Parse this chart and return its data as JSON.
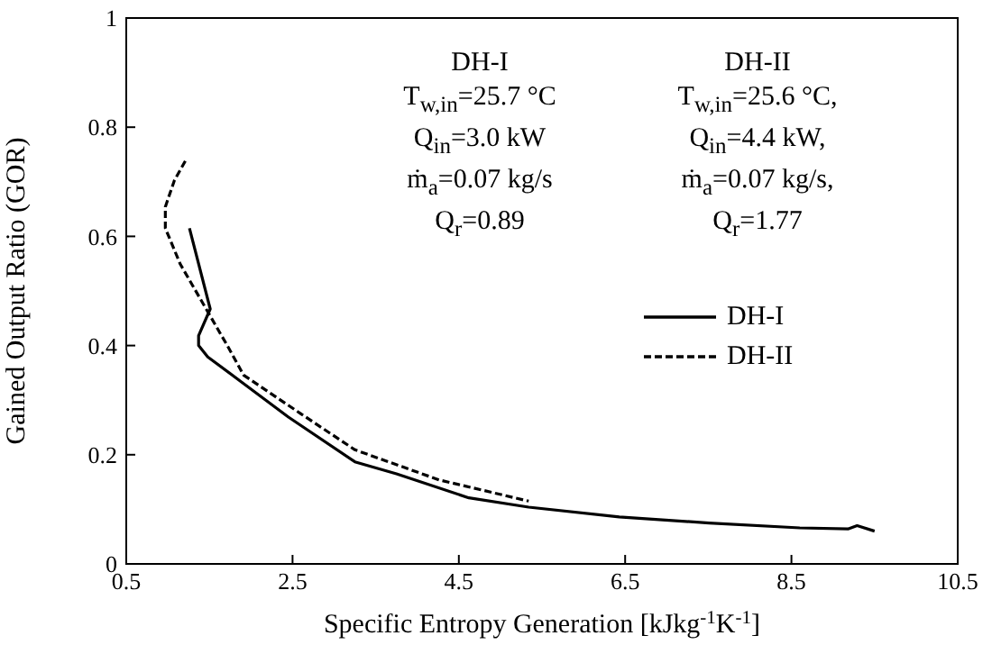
{
  "chart_data": {
    "type": "line",
    "xlabel": "Specific Entropy Generation [kJkg$^{-1}$K$^{-1}$]",
    "ylabel": "Gained Output Ratio (GOR)",
    "xlim": [
      0.5,
      10.5
    ],
    "xticks": [
      0.5,
      2.5,
      4.5,
      6.5,
      8.5,
      10.5
    ],
    "ylim": [
      0,
      1
    ],
    "yticks": [
      0,
      0.2,
      0.4,
      0.6,
      0.8,
      1
    ],
    "legend": "right",
    "marker": "none",
    "series": [
      {
        "name": "DH-I",
        "color": "#000000",
        "line_style": "solid",
        "x": [
          1.26,
          1.51,
          1.37,
          1.37,
          1.48,
          1.87,
          2.45,
          3.25,
          3.75,
          4.62,
          5.34,
          6.43,
          7.51,
          8.6,
          9.18,
          9.29,
          9.5
        ],
        "values": [
          0.615,
          0.467,
          0.418,
          0.4,
          0.379,
          0.335,
          0.269,
          0.187,
          0.165,
          0.121,
          0.104,
          0.086,
          0.075,
          0.066,
          0.064,
          0.07,
          0.06
        ]
      },
      {
        "name": "DH-II",
        "color": "#000000",
        "line_style": "dashed",
        "x": [
          1.21,
          1.08,
          0.97,
          0.97,
          1.15,
          1.48,
          1.73,
          1.91,
          2.6,
          3.25,
          4.26,
          5.34
        ],
        "values": [
          0.738,
          0.703,
          0.654,
          0.615,
          0.549,
          0.462,
          0.396,
          0.346,
          0.275,
          0.209,
          0.154,
          0.115
        ]
      }
    ],
    "annotations": [
      "DH-I",
      "T$_{w,in}$=25.7 °C",
      "Q$_{in}$=3.0 kW",
      "ṁ$_{a}$=0.07 kg/s",
      "Q$_{r}$=0.89",
      "DH-II",
      "T$_{w,in}$=25.6 °C,",
      "Q$_{in}$=4.4 kW,",
      "ṁ$_{a}$=0.07 kg/s,",
      "Q$_{r}$=1.77"
    ]
  }
}
